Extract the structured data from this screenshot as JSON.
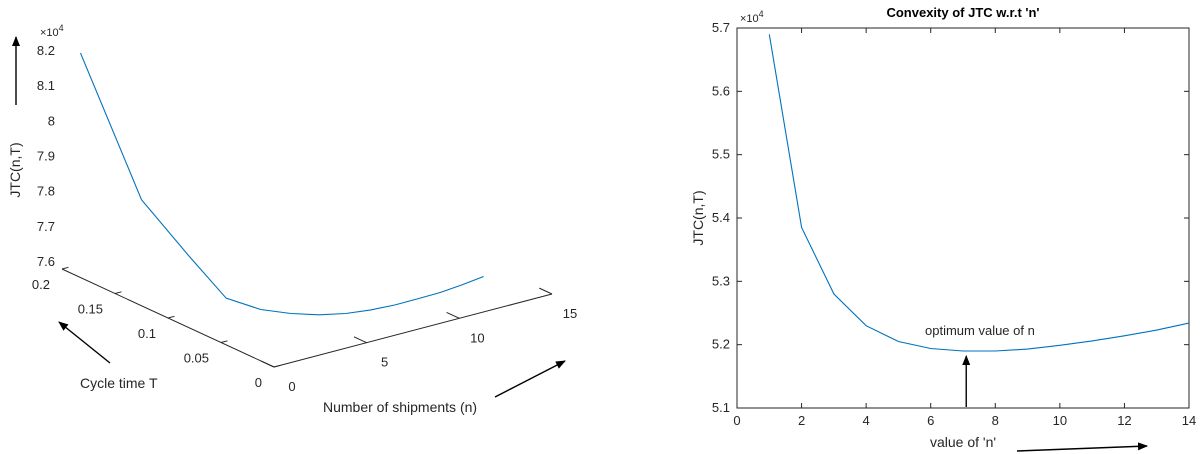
{
  "chart_data": [
    {
      "type": "line",
      "projection": "3d",
      "series": [
        {
          "n": [
            1,
            2,
            3,
            4,
            5,
            6,
            7,
            8,
            9,
            10,
            11,
            12,
            13,
            14
          ],
          "T": [
            0.2,
            0.16,
            0.133,
            0.115,
            0.1,
            0.089,
            0.08,
            0.072,
            0.066,
            0.061,
            0.057,
            0.053,
            0.05,
            0.047
          ],
          "y": [
            81800,
            78050,
            76700,
            75600,
            75350,
            75250,
            75200,
            75210,
            75260,
            75330,
            75420,
            75520,
            75640,
            75780
          ]
        }
      ],
      "zlabel": "JTC(n,T)",
      "xlabel": "Number of shipments (n)",
      "ylabel": "Cycle time T",
      "zlim": [
        76000,
        82500
      ],
      "z_ticks": [
        "7.6",
        "7.7",
        "7.8",
        "7.9",
        "8",
        "8.1",
        "8.2"
      ],
      "z_exponent": "×10",
      "z_exponent_power": "4",
      "n_ticks": [
        "0",
        "5",
        "10",
        "15"
      ],
      "T_ticks": [
        "0",
        "0.05",
        "0.1",
        "0.15",
        "0.2"
      ],
      "grid": false
    },
    {
      "type": "line",
      "title": "Convexity of JTC w.r.t  'n'",
      "xlabel": "value of 'n'",
      "ylabel": "JTC(n,T)",
      "xlim": [
        0,
        14
      ],
      "ylim": [
        51000,
        57000
      ],
      "x_ticks": [
        "0",
        "2",
        "4",
        "6",
        "8",
        "10",
        "12",
        "14"
      ],
      "y_ticks": [
        "5.1",
        "5.2",
        "5.3",
        "5.4",
        "5.5",
        "5.6",
        "5.7"
      ],
      "y_exponent": "×10",
      "y_exponent_power": "4",
      "x": [
        1,
        2,
        3,
        4,
        5,
        6,
        7,
        8,
        9,
        10,
        11,
        12,
        13,
        14
      ],
      "series": [
        {
          "values": [
            56900,
            53850,
            52800,
            52300,
            52050,
            51940,
            51900,
            51900,
            51930,
            51990,
            52060,
            52140,
            52230,
            52340
          ]
        }
      ],
      "annotation": {
        "text": "optimum value of n",
        "x": 7.1,
        "y": 51900
      },
      "grid": false
    }
  ]
}
